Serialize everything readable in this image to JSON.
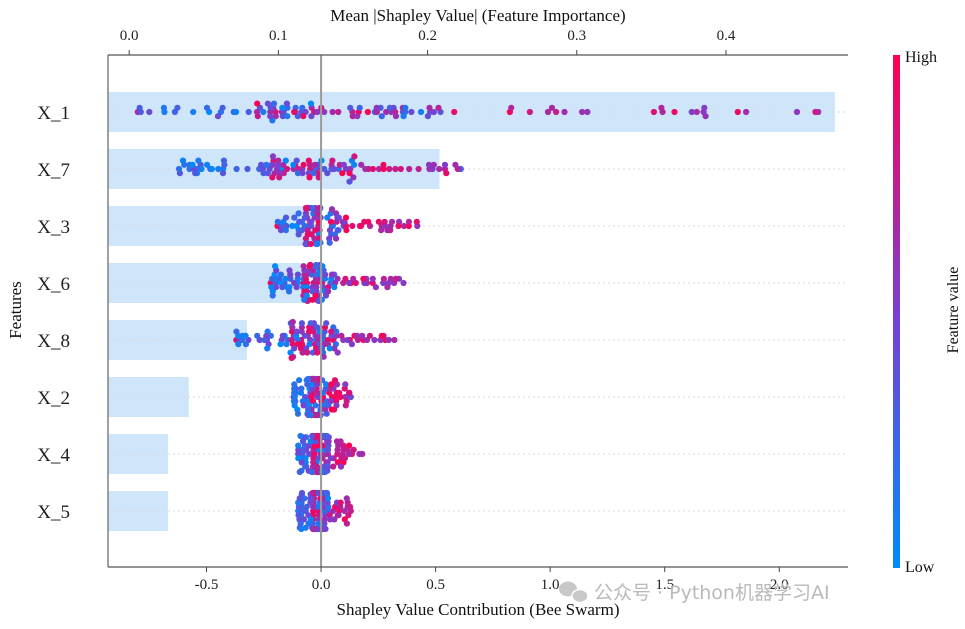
{
  "chart_data": {
    "type": "scatter",
    "top_axis": {
      "title": "Mean |Shapley Value| (Feature Importance)",
      "range": [
        -0.0142,
        0.4818
      ],
      "ticks": [
        0.0,
        0.1,
        0.2,
        0.3,
        0.4
      ],
      "tick_labels": [
        "0.0",
        "0.1",
        "0.2",
        "0.3",
        "0.4"
      ]
    },
    "bottom_axis": {
      "title": "Shapley Value Contribution (Bee Swarm)",
      "range": [
        -0.93,
        2.3
      ],
      "ticks": [
        -0.5,
        0.0,
        0.5,
        1.0,
        1.5,
        2.0
      ],
      "tick_labels": [
        "-0.5",
        "0.0",
        "0.5",
        "1.0",
        "1.5",
        "2.0"
      ]
    },
    "ylabel": "Features",
    "features": [
      "X_1",
      "X_7",
      "X_3",
      "X_6",
      "X_8",
      "X_2",
      "X_4",
      "X_5"
    ],
    "mean_abs_shap": [
      0.473,
      0.208,
      0.128,
      0.118,
      0.079,
      0.04,
      0.026,
      0.026
    ],
    "shap_ranges": [
      {
        "feature": "X_1",
        "min": -0.8,
        "max": 2.17
      },
      {
        "feature": "X_7",
        "min": -0.62,
        "max": 0.61
      },
      {
        "feature": "X_3",
        "min": -0.19,
        "max": 0.42
      },
      {
        "feature": "X_6",
        "min": -0.22,
        "max": 0.36
      },
      {
        "feature": "X_8",
        "min": -0.37,
        "max": 0.32
      },
      {
        "feature": "X_2",
        "min": -0.12,
        "max": 0.13
      },
      {
        "feature": "X_4",
        "min": -0.1,
        "max": 0.18
      },
      {
        "feature": "X_5",
        "min": -0.1,
        "max": 0.13
      }
    ],
    "zero_line": 0.0,
    "colorbar": {
      "title": "Feature value",
      "high_label": "High",
      "low_label": "Low",
      "high_color": "#ff0052",
      "low_color": "#008bfb"
    },
    "bar_color": "#cfe6fa",
    "grid": false
  },
  "watermark": {
    "text": "公众号 · Python机器学习AI"
  }
}
